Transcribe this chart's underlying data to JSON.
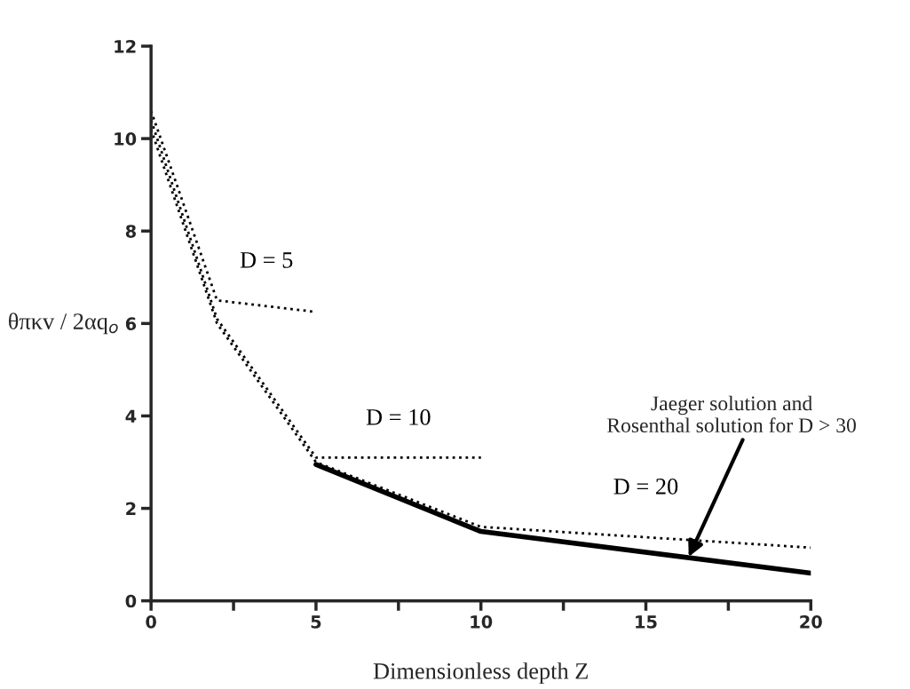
{
  "chart_data": {
    "type": "line",
    "xlabel": "Dimensionless depth Z",
    "ylabel": "θπκv / 2αq$_{o}$",
    "xlim": [
      0,
      20
    ],
    "ylim": [
      0,
      12
    ],
    "xticks": [
      0,
      {
        "value": 2.5,
        "label": null
      },
      5,
      {
        "value": 7.5,
        "label": null
      },
      10,
      {
        "value": 12.5,
        "label": null
      },
      15,
      {
        "value": 17.5,
        "label": null
      },
      20
    ],
    "yticks": [
      0,
      2,
      4,
      6,
      8,
      10,
      12
    ],
    "grid": false,
    "legend": false,
    "marker": "none",
    "series": [
      {
        "name": "D = 5",
        "color": "#000000",
        "line_style": "dotted",
        "x": [
          0,
          2,
          5
        ],
        "values": [
          10.6,
          6.5,
          6.25
        ]
      },
      {
        "name": "D = 10",
        "color": "#000000",
        "line_style": "dotted",
        "x": [
          0,
          2,
          5,
          10
        ],
        "values": [
          10.4,
          6.1,
          3.1,
          3.1
        ]
      },
      {
        "name": "D = 20",
        "color": "#000000",
        "line_style": "dotted",
        "x": [
          0,
          2,
          5,
          10,
          20
        ],
        "values": [
          10.2,
          6.0,
          3.0,
          1.6,
          1.15
        ]
      },
      {
        "color": "#000000",
        "line_style": "solid",
        "x": [
          5,
          10,
          20
        ],
        "values": [
          2.95,
          1.5,
          0.6
        ]
      }
    ],
    "annotations": [
      {
        "text": "Jaeger solution and\nRosenthal solution for D > 30",
        "x": 16.3,
        "y": 0.95
      }
    ]
  }
}
